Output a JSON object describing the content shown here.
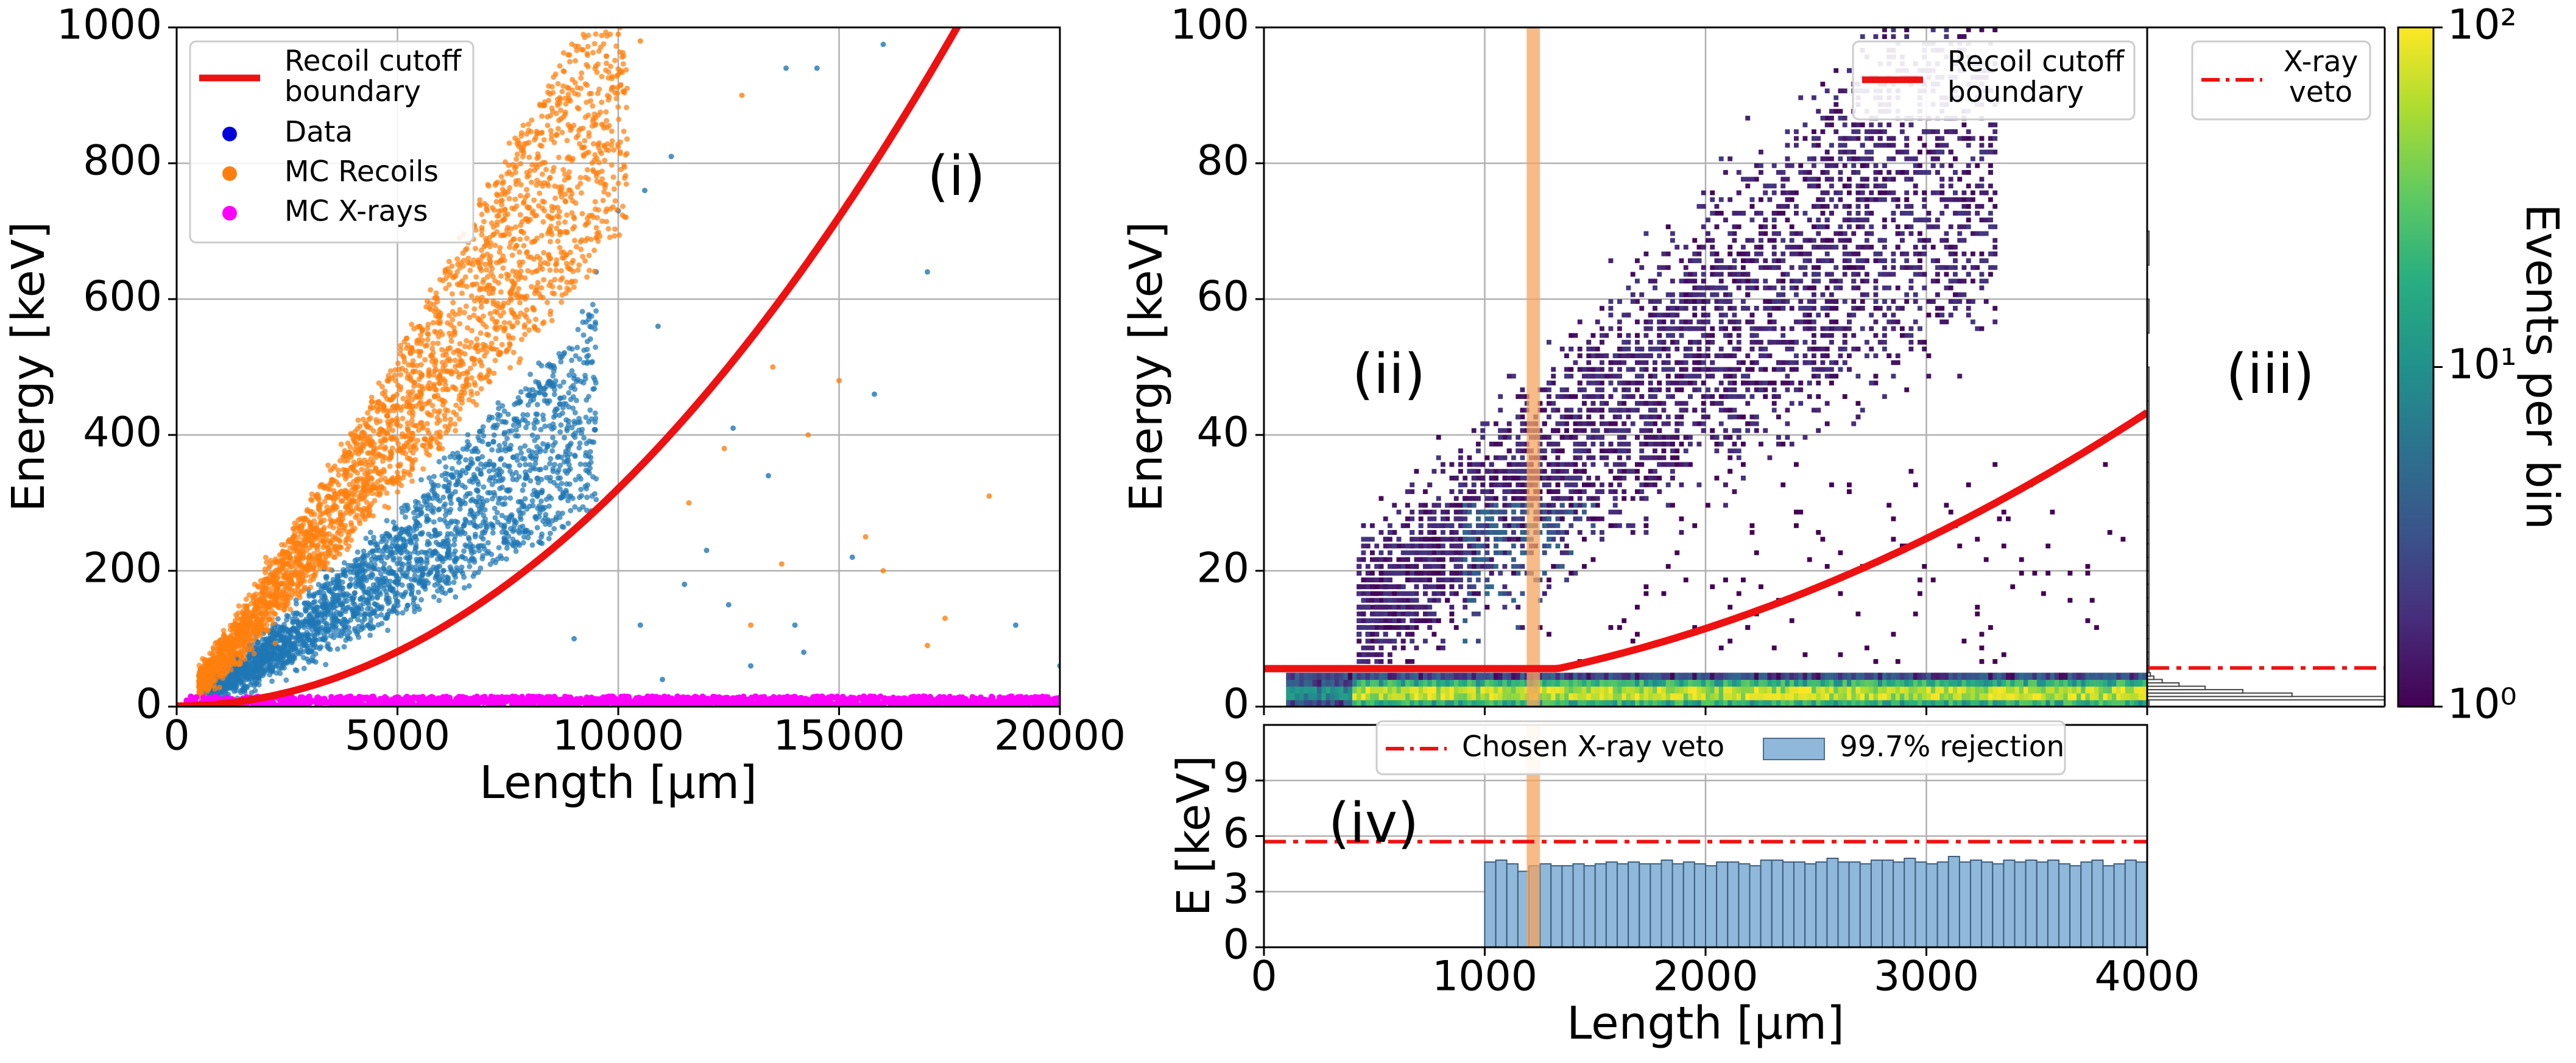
{
  "chart_data": [
    {
      "id": "i",
      "type": "scatter",
      "panel_label": "(i)",
      "xlabel": "Length [μm]",
      "ylabel": "Energy [keV]",
      "xlim": [
        0,
        20000
      ],
      "ylim": [
        0,
        1000
      ],
      "xticks": [
        0,
        5000,
        10000,
        15000,
        20000
      ],
      "yticks": [
        0,
        200,
        400,
        600,
        800,
        1000
      ],
      "grid": true,
      "legend_position": "upper-left",
      "legend": [
        {
          "label": "Recoil cutoff\nboundary",
          "marker": "line",
          "color": "#ee1111"
        },
        {
          "label": "Data",
          "marker": "dot",
          "color": "#0000dd"
        },
        {
          "label": "MC Recoils",
          "marker": "dot",
          "color": "#ff7f0e"
        },
        {
          "label": "MC X-rays",
          "marker": "dot",
          "color": "#ff00ff"
        }
      ],
      "series": [
        {
          "name": "Data",
          "color": "#1f77b4",
          "band": {
            "x_start": 600,
            "x_end": 9500,
            "slope_lo": 0.022,
            "slope_hi": 0.044,
            "curve": 1.15
          },
          "points_approx": 2600,
          "outliers": [
            [
              16000,
              975
            ],
            [
              14500,
              940
            ],
            [
              13800,
              940
            ],
            [
              11200,
              810
            ],
            [
              10600,
              760
            ],
            [
              10000,
              730
            ],
            [
              9500,
              640
            ],
            [
              10900,
              560
            ],
            [
              12000,
              230
            ],
            [
              11500,
              180
            ],
            [
              13400,
              340
            ],
            [
              12500,
              150
            ],
            [
              14000,
              120
            ],
            [
              15300,
              220
            ],
            [
              17000,
              640
            ],
            [
              19000,
              120
            ],
            [
              20000,
              60
            ],
            [
              10500,
              120
            ],
            [
              9000,
              100
            ],
            [
              11000,
              40
            ],
            [
              12600,
              410
            ],
            [
              14200,
              80
            ],
            [
              15800,
              460
            ],
            [
              13000,
              60
            ]
          ]
        },
        {
          "name": "MC Recoils",
          "color": "#ff7f0e",
          "band": {
            "x_start": 500,
            "x_end": 10200,
            "slope_lo": 0.055,
            "slope_hi": 0.088,
            "curve": 1.1
          },
          "points_approx": 3000,
          "outliers": [
            [
              10000,
              990
            ],
            [
              10500,
              980
            ],
            [
              12800,
              900
            ],
            [
              15000,
              480
            ],
            [
              13500,
              500
            ],
            [
              14300,
              400
            ],
            [
              16000,
              200
            ],
            [
              17400,
              130
            ],
            [
              18400,
              310
            ],
            [
              17000,
              90
            ],
            [
              12400,
              380
            ],
            [
              13000,
              120
            ],
            [
              13700,
              210
            ],
            [
              11600,
              300
            ],
            [
              15600,
              250
            ]
          ]
        },
        {
          "name": "MC X-rays",
          "color": "#ff00ff",
          "range": [
            200,
            20000
          ],
          "energy_range": [
            0,
            15
          ],
          "points_approx": 1500
        }
      ],
      "curve": {
        "name": "Recoil cutoff boundary",
        "color": "#ee1111",
        "formula": "E = 3.2e-6 * L^2 + 0.9",
        "x_range": [
          0,
          20000
        ]
      }
    },
    {
      "id": "ii",
      "type": "heatmap",
      "panel_label": "(ii)",
      "xlabel": "",
      "ylabel": "Energy [keV]",
      "xlim": [
        0,
        4000
      ],
      "ylim": [
        0,
        100
      ],
      "yticks": [
        0,
        20,
        40,
        60,
        80,
        100
      ],
      "grid": true,
      "bins": {
        "x": 200,
        "y": 100
      },
      "colorbar": {
        "label": "Events per bin",
        "scale": "log",
        "range": [
          1,
          100
        ],
        "ticks": [
          "10⁰",
          "10¹",
          "10²"
        ],
        "colormap": "viridis"
      },
      "legend_position": "upper-right",
      "legend": [
        {
          "label": "Recoil cutoff\nboundary",
          "color": "#ee1111"
        }
      ],
      "curve": {
        "name": "Recoil cutoff boundary",
        "color": "#ee1111",
        "formula": "E = 2.65e-6 * L^2 + 0.9",
        "x_range": [
          0,
          4000
        ],
        "display_floor": 5.6
      },
      "veto_band": {
        "x": [
          1190,
          1250
        ],
        "color": "#f4a460"
      }
    },
    {
      "id": "iii",
      "type": "bar",
      "orientation": "horizontal",
      "panel_label": "(iii)",
      "ylim": [
        0,
        100
      ],
      "legend_position": "upper-right",
      "legend": [
        {
          "label": "X-ray\nveto",
          "color": "#ee1111",
          "style": "dash-dot"
        }
      ],
      "veto_energy": 5.7,
      "bins": [
        [
          0.0,
          1.0,
          1
        ],
        [
          1.0,
          1.5,
          8200
        ],
        [
          1.5,
          2.0,
          5000
        ],
        [
          2.0,
          2.5,
          3300
        ],
        [
          2.5,
          3.0,
          2000
        ],
        [
          3.0,
          3.5,
          1100
        ],
        [
          3.5,
          4.0,
          520
        ],
        [
          4.0,
          4.5,
          230
        ],
        [
          4.5,
          5.0,
          110
        ],
        [
          5.0,
          5.5,
          55
        ],
        [
          5.5,
          6.0,
          28
        ],
        [
          6.0,
          7.0,
          18
        ],
        [
          7.0,
          8.0,
          10
        ],
        [
          8.0,
          10,
          8
        ],
        [
          10,
          12,
          6
        ],
        [
          12,
          14,
          9
        ],
        [
          14,
          16,
          5
        ],
        [
          16,
          18,
          4
        ],
        [
          18,
          20,
          6
        ],
        [
          20,
          22,
          3
        ],
        [
          22,
          24,
          5
        ],
        [
          24,
          26,
          2
        ],
        [
          26,
          28,
          4
        ],
        [
          28,
          30,
          2
        ],
        [
          30,
          33,
          3
        ],
        [
          33,
          36,
          2
        ],
        [
          36,
          40,
          2
        ],
        [
          40,
          45,
          1
        ],
        [
          45,
          50,
          1
        ],
        [
          55,
          60,
          1
        ],
        [
          65,
          70,
          1
        ]
      ]
    },
    {
      "id": "iv",
      "type": "bar",
      "panel_label": "(iv)",
      "xlabel": "Length [μm]",
      "ylabel": "E [keV]",
      "xlim": [
        0,
        4000
      ],
      "ylim": [
        0,
        12
      ],
      "xticks": [
        0,
        1000,
        2000,
        3000,
        4000
      ],
      "yticks": [
        0,
        3,
        6,
        9
      ],
      "grid": true,
      "legend_position": "upper-center",
      "legend": [
        {
          "label": "Chosen X-ray veto",
          "color": "#ee1111",
          "style": "dash-dot"
        },
        {
          "label": "99.7% rejection",
          "color": "#8fb8db"
        }
      ],
      "veto_energy": 5.7,
      "bin_edges_start": 1000,
      "bin_width": 50,
      "values": [
        4.6,
        4.7,
        4.5,
        4.1,
        4.4,
        4.5,
        4.4,
        4.4,
        4.5,
        4.4,
        4.5,
        4.6,
        4.5,
        4.6,
        4.5,
        4.5,
        4.7,
        4.5,
        4.6,
        4.5,
        4.4,
        4.6,
        4.6,
        4.5,
        4.4,
        4.7,
        4.7,
        4.6,
        4.6,
        4.5,
        4.6,
        4.8,
        4.6,
        4.6,
        4.5,
        4.7,
        4.7,
        4.6,
        4.8,
        4.6,
        4.5,
        4.6,
        4.9,
        4.6,
        4.7,
        4.6,
        4.5,
        4.7,
        4.6,
        4.7,
        4.6,
        4.7,
        4.5,
        4.4,
        4.6,
        4.7,
        4.4,
        4.5,
        4.7,
        4.6
      ]
    }
  ]
}
